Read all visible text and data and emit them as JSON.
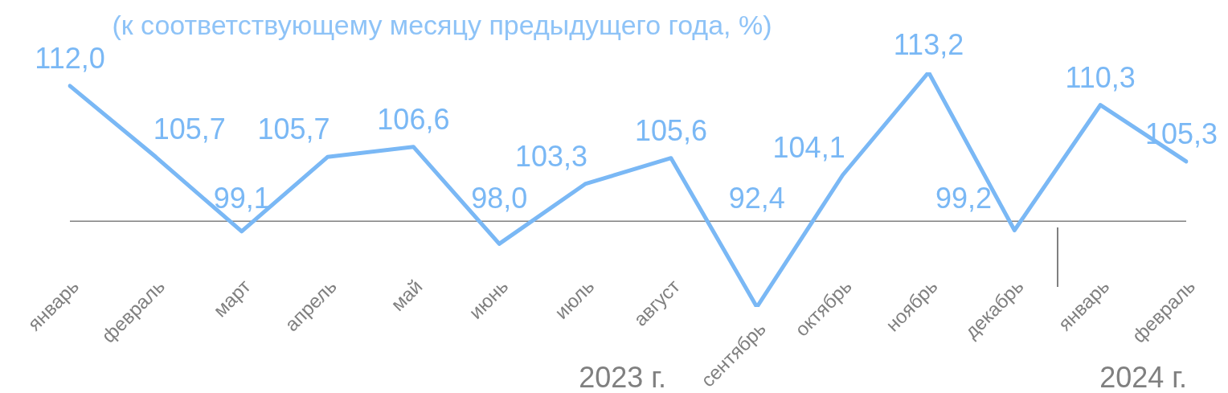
{
  "chart_data": {
    "type": "line",
    "title": "(к соответствующему месяцу предыдущего года, %)",
    "categories": [
      "январь",
      "февраль",
      "март",
      "апрель",
      "май",
      "июнь",
      "июль",
      "август",
      "сентябрь",
      "октябрь",
      "ноябрь",
      "декабрь",
      "январь",
      "февраль"
    ],
    "series": [
      {
        "color": "#7ab8f5",
        "values": [
          112.0,
          105.7,
          99.1,
          105.7,
          106.6,
          98.0,
          103.3,
          105.6,
          92.4,
          104.1,
          113.2,
          99.2,
          110.3,
          105.3
        ],
        "value_labels": [
          "112,0",
          "105,7",
          "99,1",
          "105,7",
          "106,6",
          "98,0",
          "103,3",
          "105,6",
          "92,4",
          "104,1",
          "113,2",
          "99,2",
          "110,3",
          "105,3"
        ]
      }
    ],
    "ref_lines": [
      {
        "axis": "y",
        "value": 100,
        "color": "#808080"
      }
    ],
    "annotations": [
      "2023 г.",
      "2024 г."
    ],
    "marker": "none",
    "line_style": "solid",
    "grid": false,
    "legend": false
  }
}
